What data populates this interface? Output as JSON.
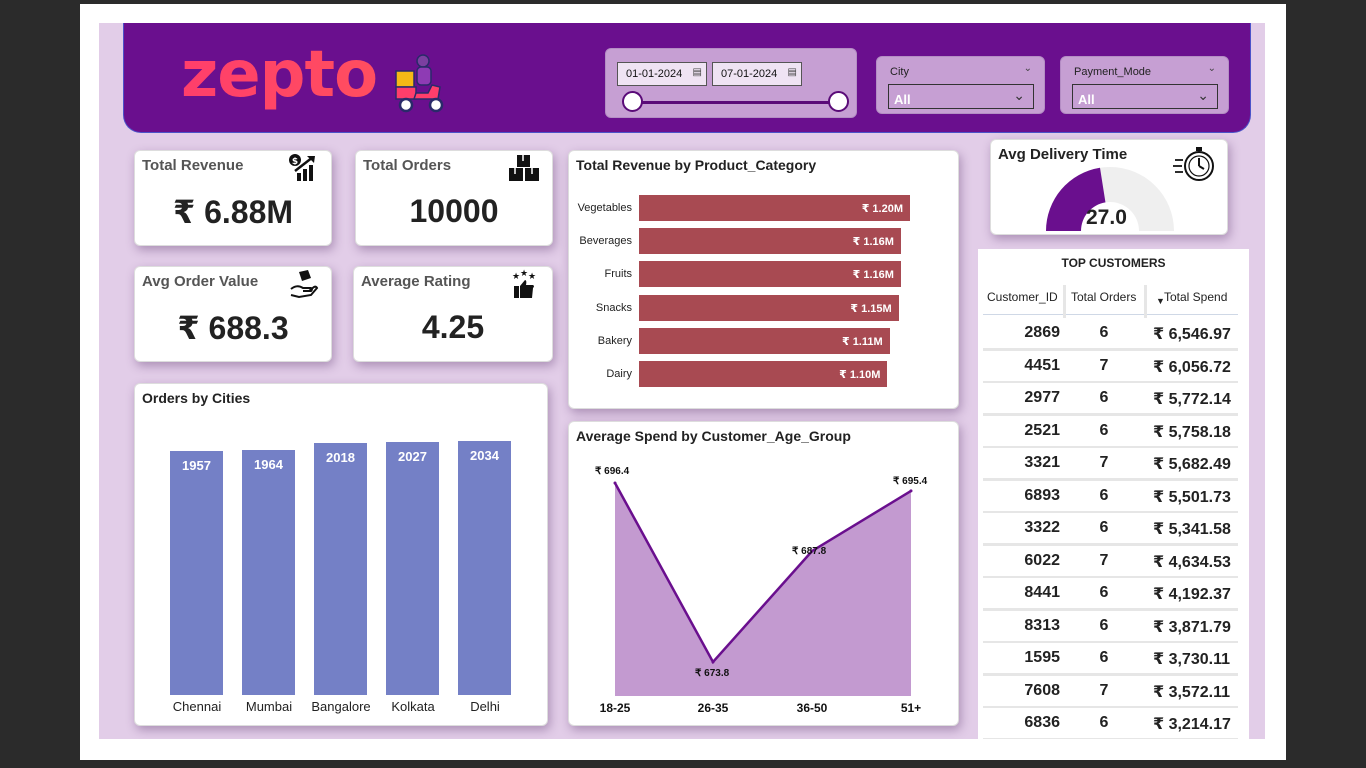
{
  "brand": {
    "logo_text": "zepto",
    "accent": "#ff3e6b",
    "header_bg": "#6a0f8e"
  },
  "filters": {
    "date_from": "01-01-2024",
    "date_to": "07-01-2024",
    "city_label": "City",
    "city_value": "All",
    "payment_label": "Payment_Mode",
    "payment_value": "All"
  },
  "kpis": {
    "total_revenue": {
      "title": "Total Revenue",
      "value": "₹ 6.88M",
      "icon": "revenue-growth-icon"
    },
    "total_orders": {
      "title": "Total Orders",
      "value": "10000",
      "icon": "boxes-icon"
    },
    "avg_order_value": {
      "title": "Avg Order Value",
      "value": "₹ 688.3",
      "icon": "hand-box-icon"
    },
    "average_rating": {
      "title": "Average Rating",
      "value": "4.25",
      "icon": "stars-thumb-icon"
    }
  },
  "delivery": {
    "title": "Avg Delivery Time",
    "value": "27.0",
    "fill_fraction": 0.45,
    "icon": "stopwatch-icon"
  },
  "chart_data": [
    {
      "type": "bar",
      "orientation": "horizontal",
      "title": "Total Revenue by Product_Category",
      "categories": [
        "Vegetables",
        "Beverages",
        "Fruits",
        "Snacks",
        "Bakery",
        "Dairy"
      ],
      "values": [
        1.2,
        1.16,
        1.16,
        1.15,
        1.11,
        1.1
      ],
      "value_labels": [
        "₹ 1.20M",
        "₹ 1.16M",
        "₹ 1.16M",
        "₹ 1.15M",
        "₹ 1.11M",
        "₹ 1.10M"
      ],
      "color": "#a84a52"
    },
    {
      "type": "bar",
      "title": "Orders by Cities",
      "categories": [
        "Chennai",
        "Mumbai",
        "Bangalore",
        "Kolkata",
        "Delhi"
      ],
      "values": [
        1957,
        1964,
        2018,
        2027,
        2034
      ],
      "color": "#7480c6"
    },
    {
      "type": "area",
      "title": "Average Spend by Customer_Age_Group",
      "categories": [
        "18-25",
        "26-35",
        "36-50",
        "51+"
      ],
      "values": [
        696.4,
        673.8,
        687.8,
        695.4
      ],
      "value_labels": [
        "₹ 696.4",
        "₹ 673.8",
        "₹ 687.8",
        "₹ 695.4"
      ],
      "color": "#c39ad0",
      "line_color": "#6a0f8e"
    }
  ],
  "top_customers": {
    "title": "TOP CUSTOMERS",
    "columns": [
      "Customer_ID",
      "Total Orders",
      "Total Spend"
    ],
    "sort_indicator": "▼",
    "rows": [
      [
        "2869",
        "6",
        "₹ 6,546.97"
      ],
      [
        "4451",
        "7",
        "₹ 6,056.72"
      ],
      [
        "2977",
        "6",
        "₹ 5,772.14"
      ],
      [
        "2521",
        "6",
        "₹ 5,758.18"
      ],
      [
        "3321",
        "7",
        "₹ 5,682.49"
      ],
      [
        "6893",
        "6",
        "₹ 5,501.73"
      ],
      [
        "3322",
        "6",
        "₹ 5,341.58"
      ],
      [
        "6022",
        "7",
        "₹ 4,634.53"
      ],
      [
        "8441",
        "6",
        "₹ 4,192.37"
      ],
      [
        "8313",
        "6",
        "₹ 3,871.79"
      ],
      [
        "1595",
        "6",
        "₹ 3,730.11"
      ],
      [
        "7608",
        "7",
        "₹ 3,572.11"
      ],
      [
        "6836",
        "6",
        "₹ 3,214.17"
      ]
    ]
  }
}
